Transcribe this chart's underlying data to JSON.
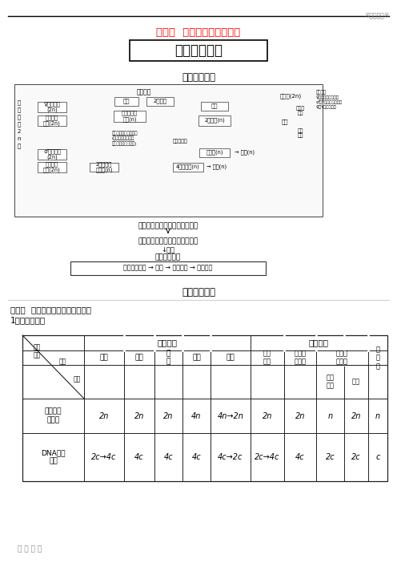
{
  "title_top_right": "※精品试卷※",
  "title_red": "第二章  基因和染色体的关系",
  "title_box": "章末整合提升",
  "section1": "知识系统构建",
  "section2": "规律方法整合",
  "section3": "整合一  减数分裂与有丝分裂的比较",
  "section3_sub": "1．列表比较法",
  "footer": "推 荐 下 载",
  "bg_color": "#ffffff",
  "line_color": "#000000",
  "red_color": "#ff0000",
  "col_bounds": [
    28,
    105,
    155,
    193,
    228,
    263,
    313,
    355,
    395,
    430,
    460,
    484
  ],
  "row_bounds": [
    418,
    437,
    455,
    497,
    540,
    600
  ],
  "chrom_values": [
    "2n",
    "2n",
    "2n",
    "4n",
    "4n→2n",
    "2n",
    "2n",
    "n",
    "2n",
    "n"
  ],
  "dna_values": [
    "2c→4c",
    "4c",
    "4c",
    "4c",
    "4c→2c",
    "2c→4c",
    "4c",
    "2c",
    "2c",
    "c"
  ]
}
